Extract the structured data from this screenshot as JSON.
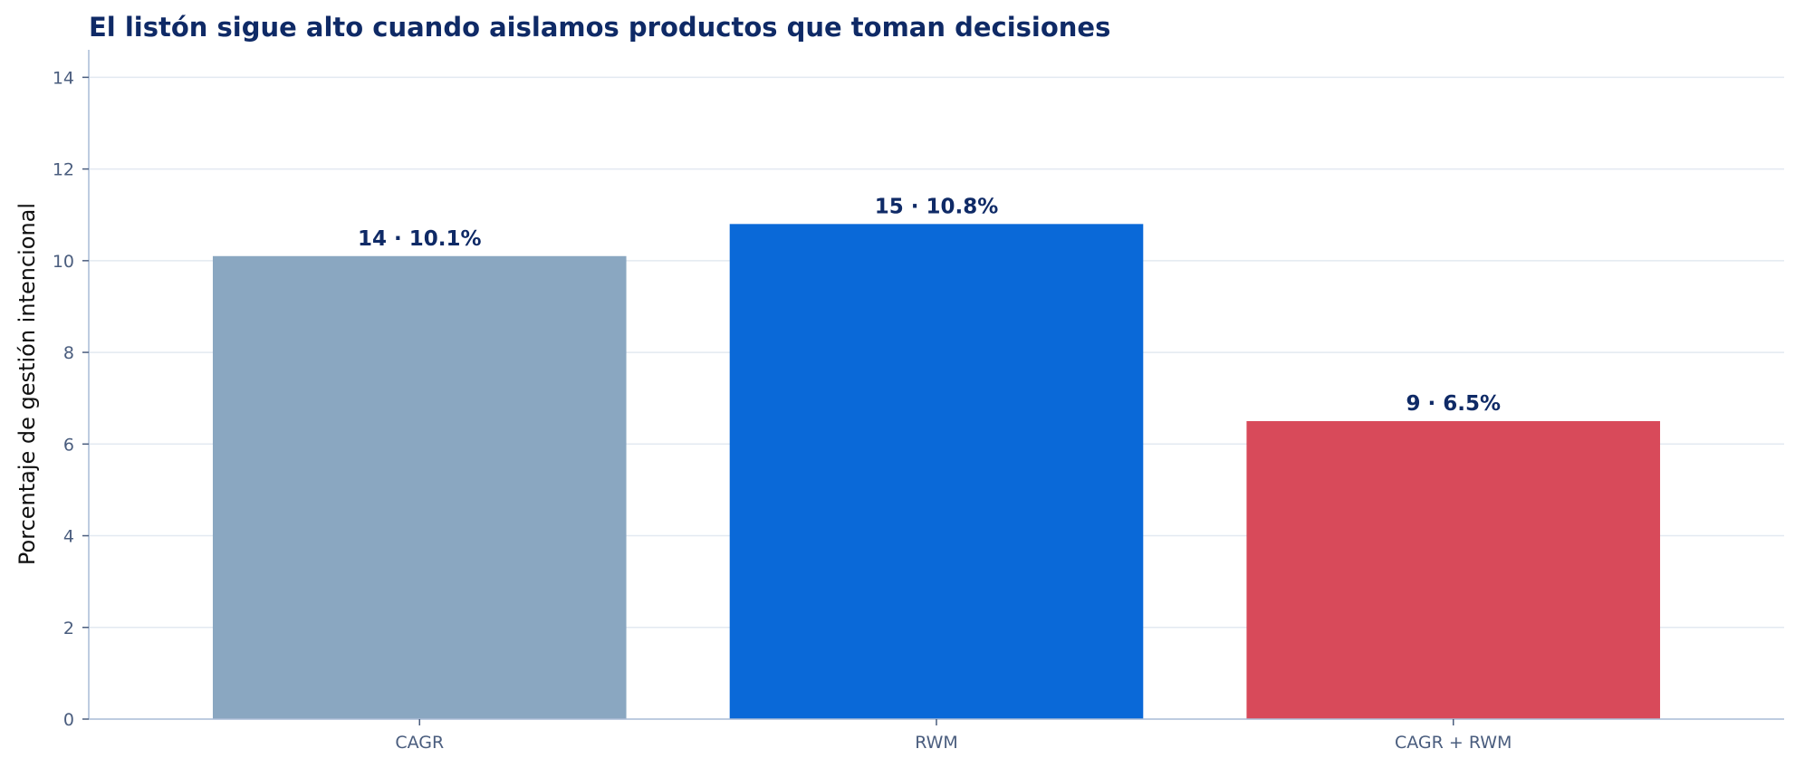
{
  "chart_data": {
    "type": "bar",
    "title": "El listón sigue alto cuando aislamos productos que toman decisiones",
    "xlabel": "",
    "ylabel": "Porcentaje de gestión intencional",
    "categories": [
      "CAGR",
      "RWM",
      "CAGR + RWM"
    ],
    "values": [
      10.1,
      10.8,
      6.5
    ],
    "data_labels": [
      "14 · 10.1%",
      "15 · 10.8%",
      "9 · 6.5%"
    ],
    "colors": [
      "#8aa7c1",
      "#0a69d8",
      "#d84a5a"
    ],
    "ylim": [
      0,
      14.6
    ],
    "yticks": [
      0,
      2,
      4,
      6,
      8,
      10,
      12,
      14
    ],
    "grid": true,
    "legend": "none"
  }
}
